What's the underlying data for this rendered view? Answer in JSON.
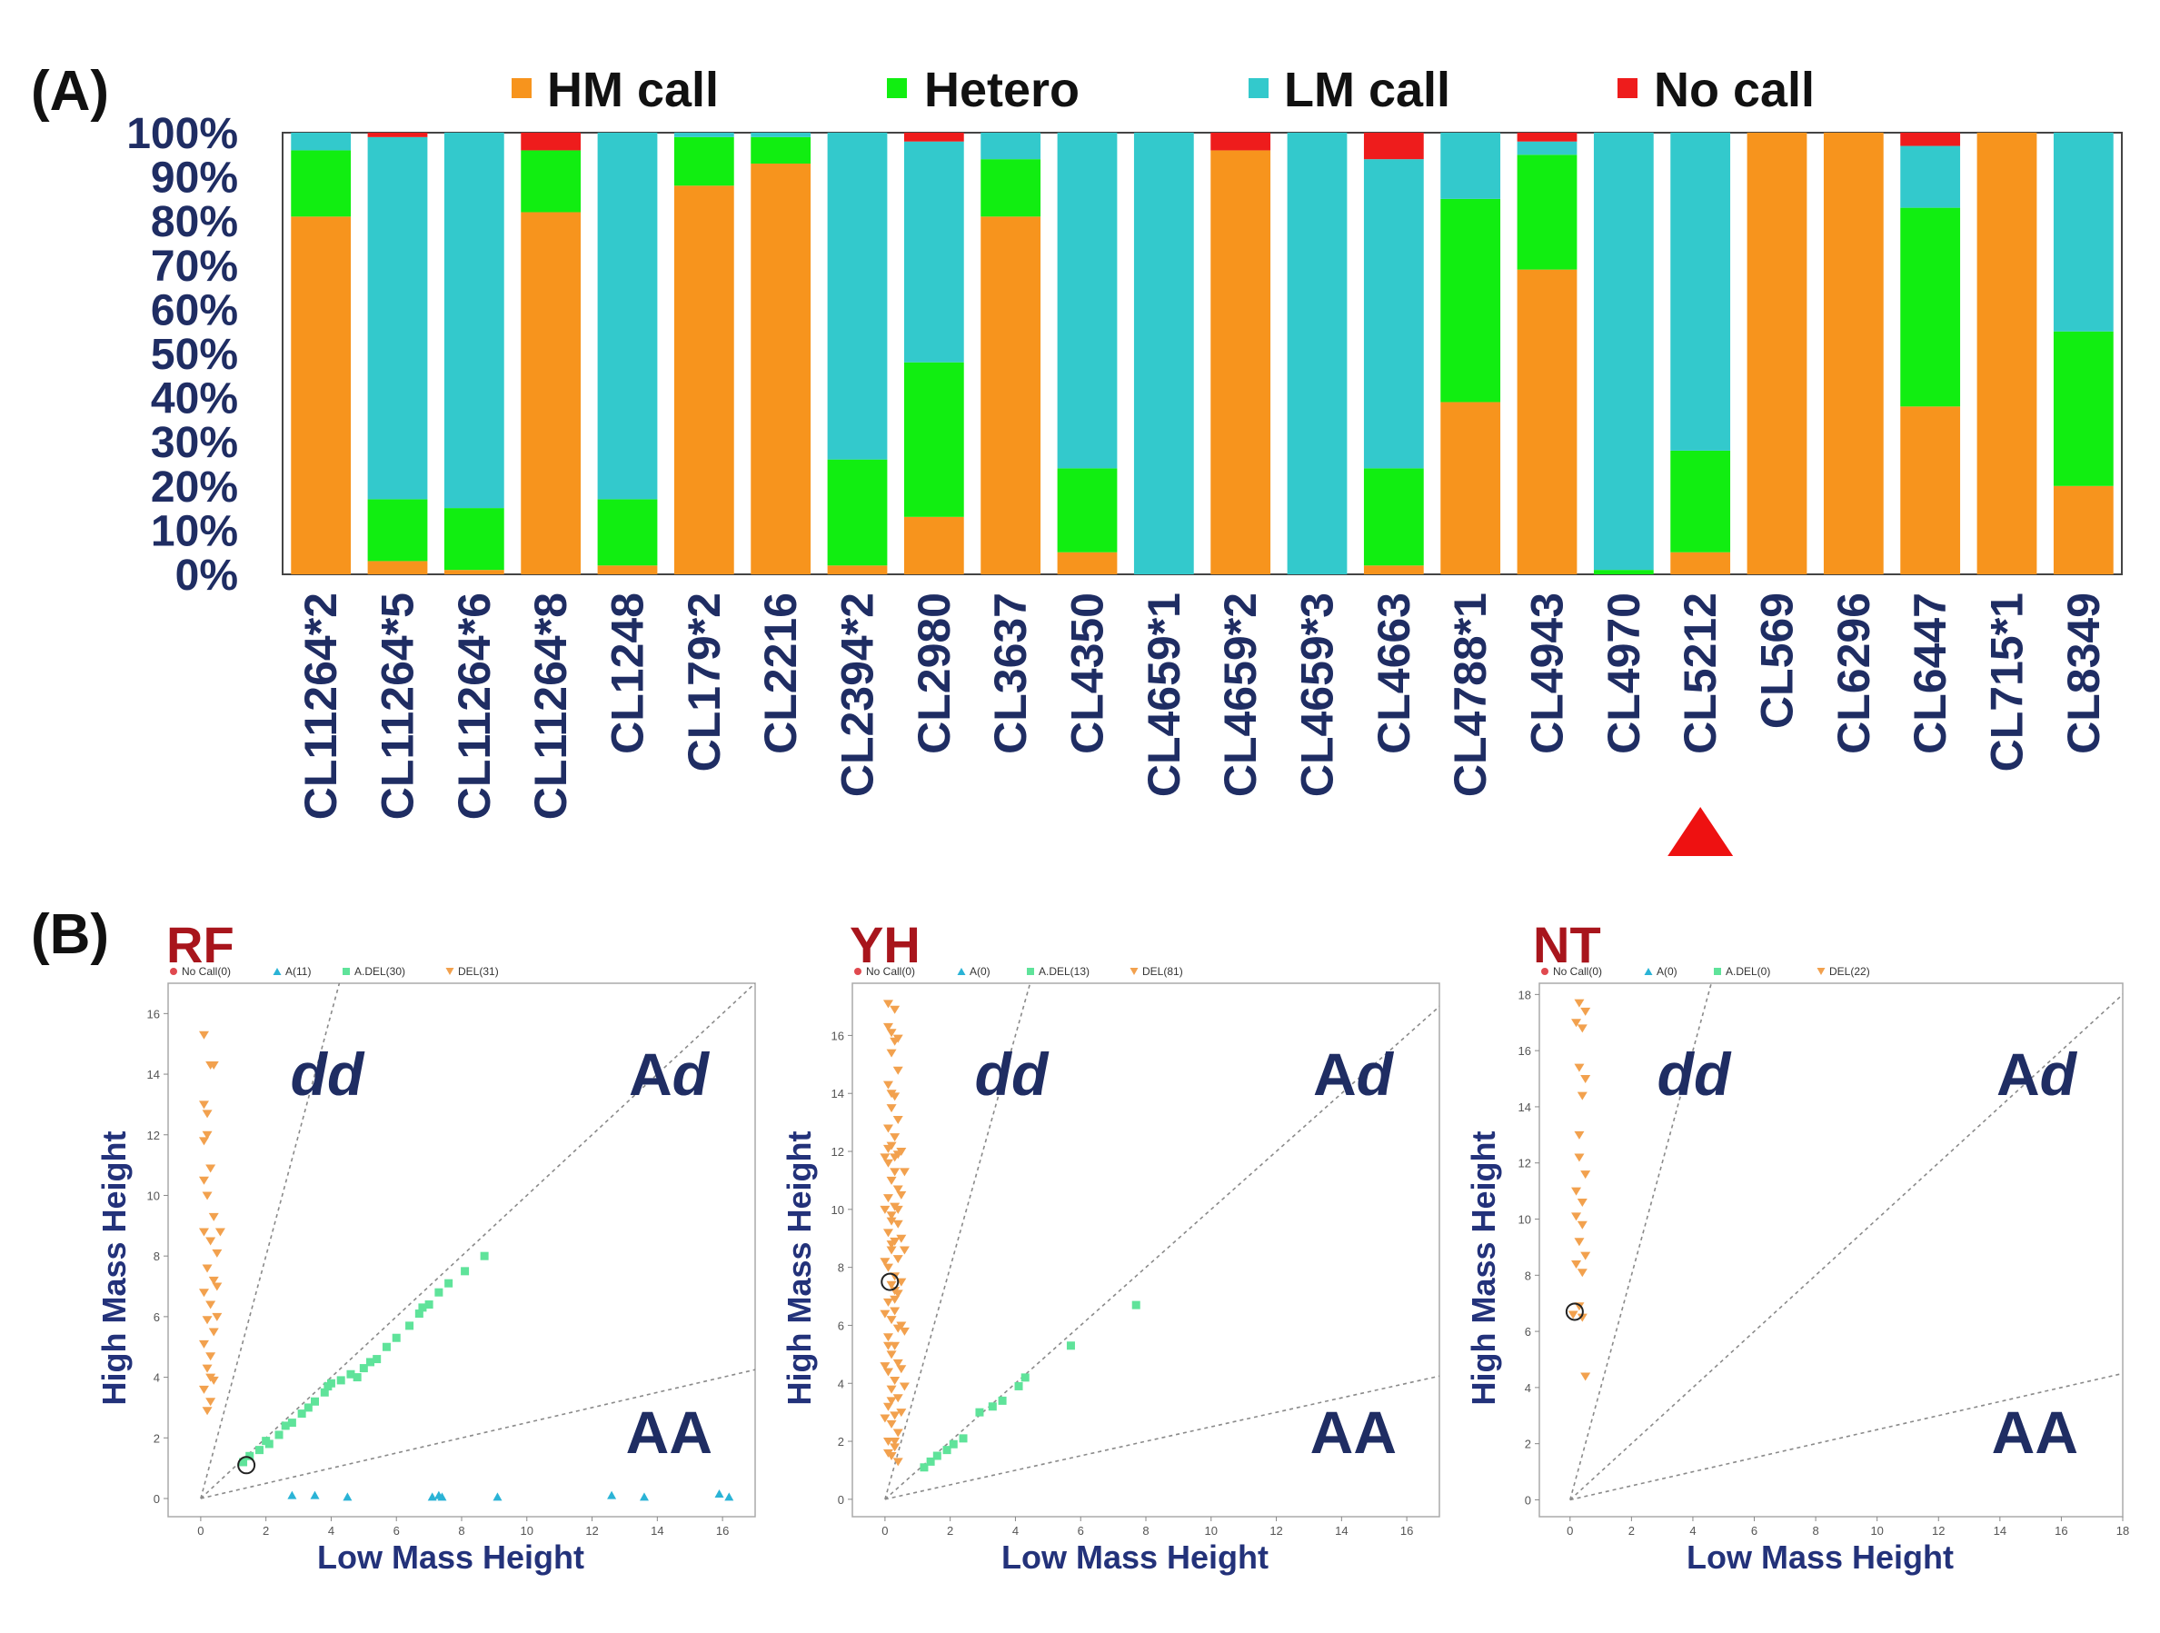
{
  "colors": {
    "hm": "#f7941d",
    "hetero": "#11ee11",
    "lm": "#33c9cc",
    "nocall": "#ee1c1c",
    "axis_text": "#1f2d63",
    "title_red": "#a8151c",
    "scatter_nocall": "#e0494f",
    "scatter_a": "#2ab3d6",
    "scatter_adel": "#5fe39a",
    "scatter_del": "#f2a14e",
    "marker": "#ee1111"
  },
  "panel_a": {
    "label": "(A)",
    "legend": [
      {
        "key": "hm",
        "label": "HM call"
      },
      {
        "key": "hetero",
        "label": "Hetero"
      },
      {
        "key": "lm",
        "label": "LM call"
      },
      {
        "key": "nocall",
        "label": "No call"
      }
    ]
  },
  "panel_b": {
    "label": "(B)"
  },
  "chart_data": [
    {
      "type": "bar",
      "stacked": true,
      "title": "",
      "ylabel": "",
      "ylim": [
        0,
        100
      ],
      "yticks": [
        "0%",
        "10%",
        "20%",
        "30%",
        "40%",
        "50%",
        "60%",
        "70%",
        "80%",
        "90%",
        "100%"
      ],
      "categories": [
        "CL11264*2",
        "CL11264*5",
        "CL11264*6",
        "CL11264*8",
        "CL1248",
        "CL179*2",
        "CL2216",
        "CL2394*2",
        "CL2980",
        "CL3637",
        "CL4350",
        "CL4659*1",
        "CL4659*2",
        "CL4659*3",
        "CL4663",
        "CL4788*1",
        "CL4943",
        "CL4970",
        "CL5212",
        "CL569",
        "CL6296",
        "CL6447",
        "CL715*1",
        "CL8349"
      ],
      "highlighted_category": "CL5212",
      "series": [
        {
          "name": "HM call",
          "values": [
            81,
            3,
            1,
            82,
            2,
            88,
            93,
            2,
            13,
            81,
            5,
            0,
            96,
            0,
            2,
            39,
            69,
            0,
            5,
            100,
            100,
            38,
            100,
            20
          ]
        },
        {
          "name": "Hetero",
          "values": [
            15,
            14,
            14,
            14,
            15,
            11,
            6,
            24,
            35,
            13,
            19,
            0,
            0,
            0,
            22,
            46,
            26,
            1,
            23,
            0,
            0,
            45,
            0,
            35
          ]
        },
        {
          "name": "LM call",
          "values": [
            4,
            82,
            85,
            0,
            83,
            1,
            1,
            74,
            50,
            6,
            76,
            100,
            0,
            100,
            70,
            15,
            3,
            99,
            72,
            0,
            0,
            14,
            0,
            45
          ]
        },
        {
          "name": "No call",
          "values": [
            0,
            1,
            0,
            4,
            0,
            0,
            0,
            0,
            2,
            0,
            0,
            0,
            4,
            0,
            6,
            0,
            2,
            0,
            0,
            0,
            0,
            3,
            0,
            0
          ]
        }
      ]
    },
    {
      "type": "scatter",
      "title": "RF",
      "xlabel": "Low Mass Height",
      "ylabel": "High Mass Height",
      "xlim": [
        -1,
        17
      ],
      "ylim": [
        -0.6,
        17
      ],
      "xticks": [
        0,
        2,
        4,
        6,
        8,
        10,
        12,
        14,
        16
      ],
      "yticks": [
        0,
        2,
        4,
        6,
        8,
        10,
        12,
        14,
        16
      ],
      "legend": [
        {
          "key": "nocall",
          "label": "No Call(0)"
        },
        {
          "key": "a",
          "label": "A(11)"
        },
        {
          "key": "adel",
          "label": "A.DEL(30)"
        },
        {
          "key": "del",
          "label": "DEL(31)"
        }
      ],
      "zones": {
        "dd": "dd",
        "Ad": "Ad",
        "AA": "AA"
      },
      "circled_point": [
        1.4,
        1.1
      ],
      "points": {
        "del": [
          [
            0.1,
            15.3
          ],
          [
            0.3,
            14.3
          ],
          [
            0.1,
            13.0
          ],
          [
            0.2,
            12.7
          ],
          [
            0.1,
            11.8
          ],
          [
            0.3,
            10.9
          ],
          [
            0.1,
            10.5
          ],
          [
            0.2,
            10.0
          ],
          [
            0.4,
            9.3
          ],
          [
            0.1,
            8.8
          ],
          [
            0.3,
            8.5
          ],
          [
            0.5,
            8.1
          ],
          [
            0.2,
            7.6
          ],
          [
            0.4,
            7.2
          ],
          [
            0.1,
            6.8
          ],
          [
            0.3,
            6.4
          ],
          [
            0.2,
            5.9
          ],
          [
            0.4,
            5.5
          ],
          [
            0.1,
            5.1
          ],
          [
            0.3,
            4.7
          ],
          [
            0.2,
            4.3
          ],
          [
            0.4,
            3.9
          ],
          [
            0.1,
            3.6
          ],
          [
            0.3,
            3.2
          ],
          [
            0.2,
            2.9
          ],
          [
            0.5,
            6.0
          ],
          [
            0.6,
            8.8
          ],
          [
            0.5,
            7.0
          ],
          [
            0.2,
            12.0
          ],
          [
            0.4,
            14.3
          ],
          [
            0.3,
            4.0
          ]
        ],
        "adel": [
          [
            1.3,
            1.2
          ],
          [
            1.5,
            1.4
          ],
          [
            1.8,
            1.6
          ],
          [
            2.1,
            1.8
          ],
          [
            2.4,
            2.1
          ],
          [
            2.8,
            2.5
          ],
          [
            3.1,
            2.8
          ],
          [
            3.5,
            3.2
          ],
          [
            3.8,
            3.5
          ],
          [
            4.0,
            3.8
          ],
          [
            4.3,
            3.9
          ],
          [
            4.6,
            4.1
          ],
          [
            5.0,
            4.3
          ],
          [
            5.4,
            4.6
          ],
          [
            5.7,
            5.0
          ],
          [
            6.0,
            5.3
          ],
          [
            6.4,
            5.7
          ],
          [
            6.7,
            6.1
          ],
          [
            7.0,
            6.4
          ],
          [
            7.3,
            6.8
          ],
          [
            7.6,
            7.1
          ],
          [
            8.1,
            7.5
          ],
          [
            8.7,
            8.0
          ],
          [
            2.6,
            2.4
          ],
          [
            3.3,
            3.0
          ],
          [
            4.8,
            4.0
          ],
          [
            5.2,
            4.5
          ],
          [
            6.8,
            6.3
          ],
          [
            2.0,
            1.9
          ],
          [
            3.9,
            3.7
          ]
        ],
        "a": [
          [
            2.8,
            0.1
          ],
          [
            3.5,
            0.1
          ],
          [
            4.5,
            0.05
          ],
          [
            7.1,
            0.05
          ],
          [
            7.4,
            0.05
          ],
          [
            9.1,
            0.05
          ],
          [
            12.6,
            0.1
          ],
          [
            13.6,
            0.05
          ],
          [
            15.9,
            0.15
          ],
          [
            16.2,
            0.05
          ],
          [
            7.3,
            0.1
          ]
        ]
      }
    },
    {
      "type": "scatter",
      "title": "YH",
      "xlabel": "Low Mass Height",
      "ylabel": "High Mass Height",
      "xlim": [
        -1,
        17
      ],
      "ylim": [
        -0.6,
        17.8
      ],
      "xticks": [
        0,
        2,
        4,
        6,
        8,
        10,
        12,
        14,
        16
      ],
      "yticks": [
        0,
        2,
        4,
        6,
        8,
        10,
        12,
        14,
        16
      ],
      "legend": [
        {
          "key": "nocall",
          "label": "No Call(0)"
        },
        {
          "key": "a",
          "label": "A(0)"
        },
        {
          "key": "adel",
          "label": "A.DEL(13)"
        },
        {
          "key": "del",
          "label": "DEL(81)"
        }
      ],
      "zones": {
        "dd": "dd",
        "Ad": "Ad",
        "AA": "AA"
      },
      "circled_point": [
        0.15,
        7.5
      ],
      "points": {
        "del": [
          [
            0.1,
            17.1
          ],
          [
            0.3,
            16.9
          ],
          [
            0.1,
            16.3
          ],
          [
            0.3,
            15.8
          ],
          [
            0.2,
            15.4
          ],
          [
            0.4,
            14.8
          ],
          [
            0.1,
            14.3
          ],
          [
            0.3,
            13.9
          ],
          [
            0.2,
            13.5
          ],
          [
            0.4,
            13.1
          ],
          [
            0.1,
            12.8
          ],
          [
            0.3,
            12.5
          ],
          [
            0.2,
            12.2
          ],
          [
            0.4,
            11.9
          ],
          [
            0.1,
            11.6
          ],
          [
            0.3,
            11.3
          ],
          [
            0.2,
            11.0
          ],
          [
            0.4,
            10.7
          ],
          [
            0.1,
            10.4
          ],
          [
            0.3,
            10.1
          ],
          [
            0.2,
            9.8
          ],
          [
            0.4,
            9.5
          ],
          [
            0.1,
            9.2
          ],
          [
            0.3,
            8.9
          ],
          [
            0.2,
            8.6
          ],
          [
            0.4,
            8.3
          ],
          [
            0.1,
            8.0
          ],
          [
            0.3,
            7.7
          ],
          [
            0.2,
            7.4
          ],
          [
            0.4,
            7.1
          ],
          [
            0.1,
            6.8
          ],
          [
            0.3,
            6.5
          ],
          [
            0.2,
            6.2
          ],
          [
            0.4,
            5.9
          ],
          [
            0.1,
            5.6
          ],
          [
            0.3,
            5.3
          ],
          [
            0.2,
            5.0
          ],
          [
            0.4,
            4.7
          ],
          [
            0.1,
            4.4
          ],
          [
            0.3,
            4.1
          ],
          [
            0.2,
            3.8
          ],
          [
            0.4,
            3.5
          ],
          [
            0.1,
            3.2
          ],
          [
            0.3,
            2.9
          ],
          [
            0.2,
            2.6
          ],
          [
            0.4,
            2.3
          ],
          [
            0.1,
            2.0
          ],
          [
            0.3,
            1.8
          ],
          [
            0.2,
            1.5
          ],
          [
            0.4,
            1.3
          ],
          [
            0.5,
            12.0
          ],
          [
            0.5,
            10.5
          ],
          [
            0.5,
            9.0
          ],
          [
            0.5,
            7.5
          ],
          [
            0.5,
            6.0
          ],
          [
            0.5,
            4.5
          ],
          [
            0.5,
            3.0
          ],
          [
            0.0,
            11.8
          ],
          [
            0.0,
            10.0
          ],
          [
            0.0,
            8.2
          ],
          [
            0.0,
            6.4
          ],
          [
            0.0,
            4.6
          ],
          [
            0.0,
            2.8
          ],
          [
            0.6,
            11.3
          ],
          [
            0.6,
            8.6
          ],
          [
            0.6,
            5.8
          ],
          [
            0.6,
            3.9
          ],
          [
            0.2,
            16.1
          ],
          [
            0.4,
            15.9
          ],
          [
            0.2,
            14.0
          ],
          [
            0.1,
            12.1
          ],
          [
            0.3,
            11.8
          ],
          [
            0.2,
            9.6
          ],
          [
            0.3,
            7.2
          ],
          [
            0.1,
            5.3
          ],
          [
            0.2,
            3.4
          ],
          [
            0.3,
            2.0
          ],
          [
            0.1,
            1.6
          ],
          [
            0.4,
            10.0
          ],
          [
            0.2,
            8.8
          ],
          [
            0.3,
            6.9
          ]
        ],
        "adel": [
          [
            1.2,
            1.1
          ],
          [
            1.4,
            1.3
          ],
          [
            1.6,
            1.5
          ],
          [
            1.9,
            1.7
          ],
          [
            2.1,
            1.9
          ],
          [
            2.4,
            2.1
          ],
          [
            2.9,
            3.0
          ],
          [
            3.3,
            3.2
          ],
          [
            3.6,
            3.4
          ],
          [
            4.1,
            3.9
          ],
          [
            4.3,
            4.2
          ],
          [
            5.7,
            5.3
          ],
          [
            7.7,
            6.7
          ]
        ],
        "a": []
      }
    },
    {
      "type": "scatter",
      "title": "NT",
      "xlabel": "Low Mass Height",
      "ylabel": "High Mass Height",
      "xlim": [
        -1,
        18
      ],
      "ylim": [
        -0.6,
        18.4
      ],
      "xticks": [
        0,
        2,
        4,
        6,
        8,
        10,
        12,
        14,
        16,
        18
      ],
      "yticks": [
        0,
        2,
        4,
        6,
        8,
        10,
        12,
        14,
        16,
        18
      ],
      "legend": [
        {
          "key": "nocall",
          "label": "No Call(0)"
        },
        {
          "key": "a",
          "label": "A(0)"
        },
        {
          "key": "adel",
          "label": "A.DEL(0)"
        },
        {
          "key": "del",
          "label": "DEL(22)"
        }
      ],
      "zones": {
        "dd": "dd",
        "Ad": "Ad",
        "AA": "AA"
      },
      "circled_point": [
        0.15,
        6.7
      ],
      "points": {
        "del": [
          [
            0.3,
            17.7
          ],
          [
            0.5,
            17.4
          ],
          [
            0.2,
            17.0
          ],
          [
            0.4,
            16.8
          ],
          [
            0.3,
            15.4
          ],
          [
            0.5,
            15.0
          ],
          [
            0.4,
            14.4
          ],
          [
            0.3,
            12.2
          ],
          [
            0.5,
            11.6
          ],
          [
            0.2,
            11.0
          ],
          [
            0.4,
            10.6
          ],
          [
            0.2,
            10.1
          ],
          [
            0.4,
            9.8
          ],
          [
            0.3,
            9.2
          ],
          [
            0.5,
            8.7
          ],
          [
            0.2,
            8.4
          ],
          [
            0.4,
            8.1
          ],
          [
            0.3,
            6.9
          ],
          [
            0.1,
            6.6
          ],
          [
            0.4,
            6.5
          ],
          [
            0.5,
            4.4
          ],
          [
            0.3,
            13.0
          ]
        ],
        "adel": [],
        "a": []
      }
    }
  ]
}
